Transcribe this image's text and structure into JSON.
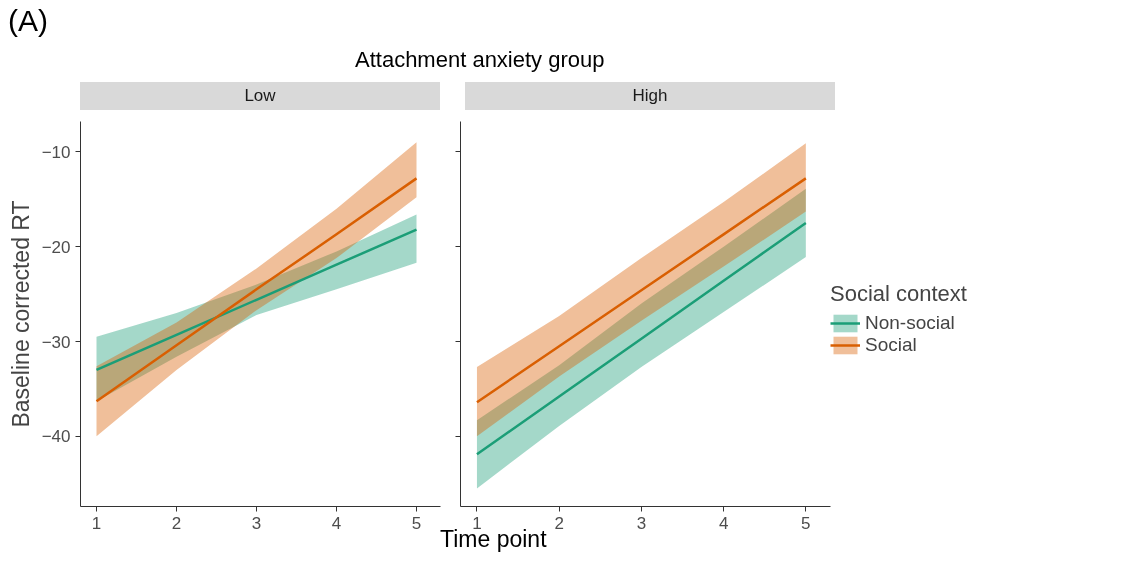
{
  "chart_data": [
    {
      "type": "line",
      "title": "Low",
      "annotations": [
        "(A)",
        "Attachment anxiety group"
      ],
      "xlabel": "Time point",
      "ylabel": "Baseline corrected RT",
      "x": [
        1,
        2,
        3,
        4,
        5
      ],
      "xlim": [
        0.8,
        5.3
      ],
      "xticks": [
        1,
        2,
        3,
        4,
        5
      ],
      "ylim": [
        -47.4,
        -6.8
      ],
      "yticks": [
        -40,
        -30,
        -20,
        -10
      ],
      "legend": false,
      "series": [
        {
          "color": "#1b9e77",
          "values": [
            -33.0,
            -29.3,
            -25.6,
            -21.9,
            -18.2
          ],
          "lower": [
            -36.3,
            -31.6,
            -27.2,
            -24.5,
            -21.7
          ],
          "upper": [
            -29.5,
            -27.0,
            -24.0,
            -20.5,
            -16.6
          ]
        },
        {
          "color": "#d95f02",
          "values": [
            -36.3,
            -30.4,
            -24.5,
            -18.7,
            -12.8
          ],
          "lower": [
            -40.0,
            -33.0,
            -26.7,
            -21.2,
            -14.8
          ],
          "upper": [
            -32.6,
            -28.0,
            -22.3,
            -16.0,
            -9.0
          ]
        }
      ]
    },
    {
      "type": "line",
      "title": "High",
      "x": [
        1,
        2,
        3,
        4,
        5
      ],
      "xlim": [
        0.8,
        5.3
      ],
      "xticks": [
        1,
        2,
        3,
        4,
        5
      ],
      "ylim": [
        -47.4,
        -6.8
      ],
      "yticks": [
        -40,
        -30,
        -20,
        -10
      ],
      "tick_labels": "x",
      "legend": "right",
      "legend_title": "Social context",
      "series": [
        {
          "name": "Non-social",
          "color": "#1b9e77",
          "values": [
            -41.9,
            -35.8,
            -29.7,
            -23.6,
            -17.5
          ],
          "lower": [
            -45.5,
            -38.9,
            -32.7,
            -26.9,
            -21.1
          ],
          "upper": [
            -38.3,
            -32.5,
            -26.0,
            -20.0,
            -13.9
          ]
        },
        {
          "name": "Social",
          "color": "#d95f02",
          "values": [
            -36.4,
            -30.5,
            -24.6,
            -18.7,
            -12.8
          ],
          "lower": [
            -40.0,
            -33.7,
            -27.8,
            -22.1,
            -16.3
          ],
          "upper": [
            -32.7,
            -27.3,
            -21.2,
            -15.3,
            -9.1
          ]
        }
      ]
    }
  ]
}
